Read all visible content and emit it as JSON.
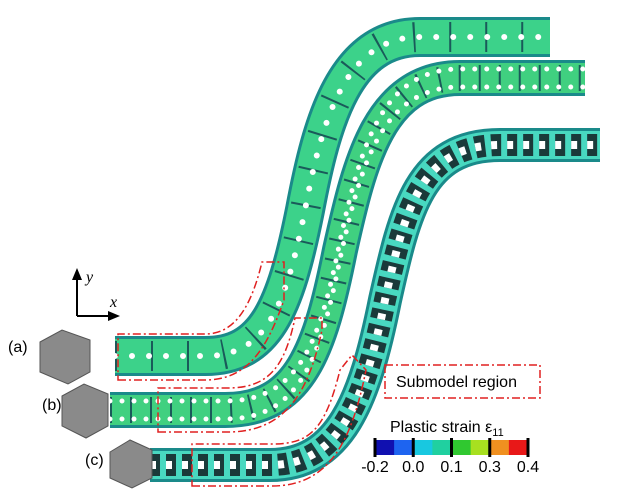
{
  "panels": [
    {
      "label": "(a)"
    },
    {
      "label": "(b)"
    },
    {
      "label": "(c)"
    }
  ],
  "axes": {
    "y": "y",
    "x": "x"
  },
  "legend": {
    "label": "Submodel region"
  },
  "colorbar": {
    "title": "Plastic strain ε",
    "subscript": "11",
    "ticks": [
      -0.2,
      {
        "value": 0,
        "label": "0.0"
      },
      0.1,
      0.3,
      0.4
    ],
    "colors": [
      "#1010b0",
      "#1e64f0",
      "#18c8e0",
      "#20d0a0",
      "#30c830",
      "#a8e020",
      "#f09020",
      "#e81818"
    ]
  }
}
